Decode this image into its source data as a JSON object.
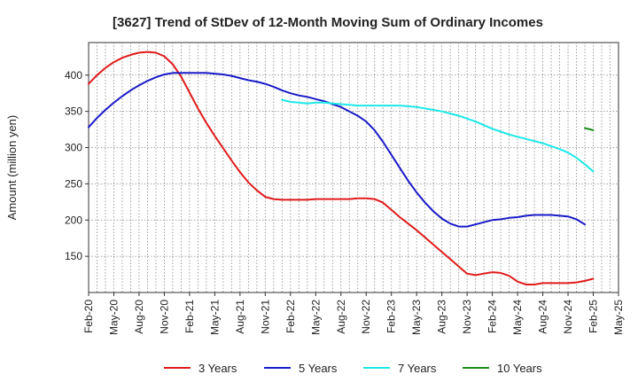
{
  "chart_data": {
    "type": "line",
    "title": "[3627]  Trend of StDev of 12-Month Moving Sum of Ordinary Incomes",
    "ylabel": "Amount (million yen)",
    "xlabel": "",
    "ylim": [
      100,
      445
    ],
    "xlim": [
      "2020-02",
      "2025-05"
    ],
    "yticks": [
      150,
      200,
      250,
      300,
      350,
      400
    ],
    "xticks": [
      "Feb-20",
      "May-20",
      "Aug-20",
      "Nov-20",
      "Feb-21",
      "May-21",
      "Aug-21",
      "Nov-21",
      "Feb-22",
      "May-22",
      "Aug-22",
      "Nov-22",
      "Feb-23",
      "May-23",
      "Aug-23",
      "Nov-23",
      "Feb-24",
      "May-24",
      "Aug-24",
      "Nov-24",
      "Feb-25",
      "May-25"
    ],
    "grid": true,
    "legend_position": "bottom",
    "series": [
      {
        "name": "3 Years",
        "color": "#e01b1b",
        "points": [
          [
            "2020-02",
            388
          ],
          [
            "2020-03",
            400
          ],
          [
            "2020-04",
            410
          ],
          [
            "2020-05",
            418
          ],
          [
            "2020-06",
            424
          ],
          [
            "2020-07",
            428
          ],
          [
            "2020-08",
            431
          ],
          [
            "2020-09",
            432
          ],
          [
            "2020-10",
            431
          ],
          [
            "2020-11",
            426
          ],
          [
            "2020-12",
            415
          ],
          [
            "2021-01",
            398
          ],
          [
            "2021-02",
            376
          ],
          [
            "2021-03",
            354
          ],
          [
            "2021-04",
            334
          ],
          [
            "2021-05",
            316
          ],
          [
            "2021-06",
            299
          ],
          [
            "2021-07",
            282
          ],
          [
            "2021-08",
            266
          ],
          [
            "2021-09",
            252
          ],
          [
            "2021-10",
            241
          ],
          [
            "2021-11",
            232
          ],
          [
            "2021-12",
            229
          ],
          [
            "2022-01",
            228
          ],
          [
            "2022-02",
            228
          ],
          [
            "2022-03",
            228
          ],
          [
            "2022-04",
            228
          ],
          [
            "2022-05",
            229
          ],
          [
            "2022-06",
            229
          ],
          [
            "2022-07",
            229
          ],
          [
            "2022-08",
            229
          ],
          [
            "2022-09",
            229
          ],
          [
            "2022-10",
            230
          ],
          [
            "2022-11",
            230
          ],
          [
            "2022-12",
            229
          ],
          [
            "2023-01",
            224
          ],
          [
            "2023-02",
            214
          ],
          [
            "2023-03",
            204
          ],
          [
            "2023-04",
            195
          ],
          [
            "2023-05",
            186
          ],
          [
            "2023-06",
            176
          ],
          [
            "2023-07",
            166
          ],
          [
            "2023-08",
            156
          ],
          [
            "2023-09",
            146
          ],
          [
            "2023-10",
            136
          ],
          [
            "2023-11",
            126
          ],
          [
            "2023-12",
            124
          ],
          [
            "2024-01",
            126
          ],
          [
            "2024-02",
            128
          ],
          [
            "2024-03",
            127
          ],
          [
            "2024-04",
            123
          ],
          [
            "2024-05",
            115
          ],
          [
            "2024-06",
            111
          ],
          [
            "2024-07",
            111
          ],
          [
            "2024-08",
            113
          ],
          [
            "2024-09",
            113
          ],
          [
            "2024-10",
            113
          ],
          [
            "2024-11",
            113
          ],
          [
            "2024-12",
            114
          ],
          [
            "2025-01",
            116
          ],
          [
            "2025-02",
            119
          ]
        ]
      },
      {
        "name": "5 Years",
        "color": "#1a1ac8",
        "points": [
          [
            "2020-02",
            328
          ],
          [
            "2020-03",
            341
          ],
          [
            "2020-04",
            352
          ],
          [
            "2020-05",
            362
          ],
          [
            "2020-06",
            371
          ],
          [
            "2020-07",
            379
          ],
          [
            "2020-08",
            386
          ],
          [
            "2020-09",
            392
          ],
          [
            "2020-10",
            397
          ],
          [
            "2020-11",
            401
          ],
          [
            "2020-12",
            403
          ],
          [
            "2021-01",
            403
          ],
          [
            "2021-02",
            403
          ],
          [
            "2021-03",
            403
          ],
          [
            "2021-04",
            403
          ],
          [
            "2021-05",
            402
          ],
          [
            "2021-06",
            401
          ],
          [
            "2021-07",
            399
          ],
          [
            "2021-08",
            396
          ],
          [
            "2021-09",
            393
          ],
          [
            "2021-10",
            391
          ],
          [
            "2021-11",
            388
          ],
          [
            "2021-12",
            384
          ],
          [
            "2022-01",
            379
          ],
          [
            "2022-02",
            375
          ],
          [
            "2022-03",
            372
          ],
          [
            "2022-04",
            370
          ],
          [
            "2022-05",
            367
          ],
          [
            "2022-06",
            364
          ],
          [
            "2022-07",
            360
          ],
          [
            "2022-08",
            356
          ],
          [
            "2022-09",
            350
          ],
          [
            "2022-10",
            344
          ],
          [
            "2022-11",
            336
          ],
          [
            "2022-12",
            324
          ],
          [
            "2023-01",
            308
          ],
          [
            "2023-02",
            290
          ],
          [
            "2023-03",
            272
          ],
          [
            "2023-04",
            254
          ],
          [
            "2023-05",
            238
          ],
          [
            "2023-06",
            224
          ],
          [
            "2023-07",
            212
          ],
          [
            "2023-08",
            202
          ],
          [
            "2023-09",
            195
          ],
          [
            "2023-10",
            191
          ],
          [
            "2023-11",
            191
          ],
          [
            "2023-12",
            194
          ],
          [
            "2024-01",
            197
          ],
          [
            "2024-02",
            200
          ],
          [
            "2024-03",
            201
          ],
          [
            "2024-04",
            203
          ],
          [
            "2024-05",
            204
          ],
          [
            "2024-06",
            206
          ],
          [
            "2024-07",
            207
          ],
          [
            "2024-08",
            207
          ],
          [
            "2024-09",
            207
          ],
          [
            "2024-10",
            206
          ],
          [
            "2024-11",
            205
          ],
          [
            "2024-12",
            201
          ],
          [
            "2025-01",
            194
          ]
        ]
      },
      {
        "name": "7 Years",
        "color": "#1ee8e8",
        "points": [
          [
            "2022-01",
            366
          ],
          [
            "2022-02",
            363
          ],
          [
            "2022-03",
            362
          ],
          [
            "2022-04",
            361
          ],
          [
            "2022-05",
            362
          ],
          [
            "2022-06",
            362
          ],
          [
            "2022-07",
            361
          ],
          [
            "2022-08",
            360
          ],
          [
            "2022-09",
            359
          ],
          [
            "2022-10",
            358
          ],
          [
            "2022-11",
            358
          ],
          [
            "2022-12",
            358
          ],
          [
            "2023-01",
            358
          ],
          [
            "2023-02",
            358
          ],
          [
            "2023-03",
            358
          ],
          [
            "2023-04",
            357
          ],
          [
            "2023-05",
            356
          ],
          [
            "2023-06",
            354
          ],
          [
            "2023-07",
            352
          ],
          [
            "2023-08",
            350
          ],
          [
            "2023-09",
            347
          ],
          [
            "2023-10",
            344
          ],
          [
            "2023-11",
            340
          ],
          [
            "2023-12",
            336
          ],
          [
            "2024-01",
            331
          ],
          [
            "2024-02",
            326
          ],
          [
            "2024-03",
            322
          ],
          [
            "2024-04",
            318
          ],
          [
            "2024-05",
            315
          ],
          [
            "2024-06",
            312
          ],
          [
            "2024-07",
            309
          ],
          [
            "2024-08",
            306
          ],
          [
            "2024-09",
            302
          ],
          [
            "2024-10",
            298
          ],
          [
            "2024-11",
            293
          ],
          [
            "2024-12",
            286
          ],
          [
            "2025-01",
            277
          ],
          [
            "2025-02",
            267
          ]
        ]
      },
      {
        "name": "10 Years",
        "color": "#1e8c1e",
        "points": [
          [
            "2025-01",
            327
          ],
          [
            "2025-02",
            324
          ]
        ]
      }
    ]
  }
}
